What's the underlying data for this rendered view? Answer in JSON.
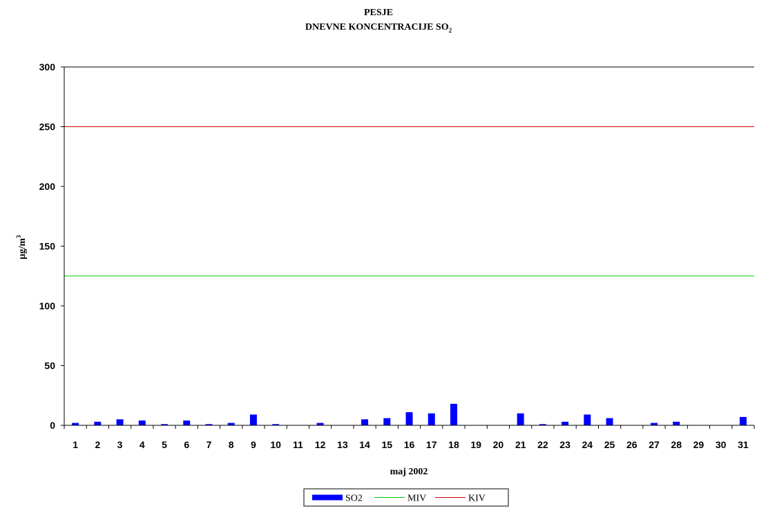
{
  "chart_data": {
    "type": "bar",
    "title_line1": "PESJE",
    "title_line2_main": "DNEVNE KONCENTRACIJE  SO",
    "title_line2_sub": "2",
    "xlabel": "maj 2002",
    "ylabel_main": "µg/m",
    "ylabel_sup": "3",
    "ylim": [
      0,
      300
    ],
    "yticks": [
      0,
      50,
      100,
      150,
      200,
      250,
      300
    ],
    "categories": [
      "1",
      "2",
      "3",
      "4",
      "5",
      "6",
      "7",
      "8",
      "9",
      "10",
      "11",
      "12",
      "13",
      "14",
      "15",
      "16",
      "17",
      "18",
      "19",
      "20",
      "21",
      "22",
      "23",
      "24",
      "25",
      "26",
      "27",
      "28",
      "29",
      "30",
      "31"
    ],
    "series": [
      {
        "name": "SO2",
        "kind": "bar",
        "color": "#0000ff",
        "values": [
          2,
          3,
          5,
          4,
          1,
          4,
          1,
          2,
          9,
          1,
          0,
          2,
          0,
          5,
          6,
          11,
          10,
          18,
          0,
          0,
          10,
          1,
          3,
          9,
          6,
          0,
          2,
          3,
          0,
          0,
          7
        ]
      },
      {
        "name": "MIV",
        "kind": "line",
        "color": "#00cc00",
        "value": 125
      },
      {
        "name": "KIV",
        "kind": "line",
        "color": "#cc0000",
        "value": 250
      }
    ],
    "grid": false,
    "legend_position": "bottom"
  }
}
